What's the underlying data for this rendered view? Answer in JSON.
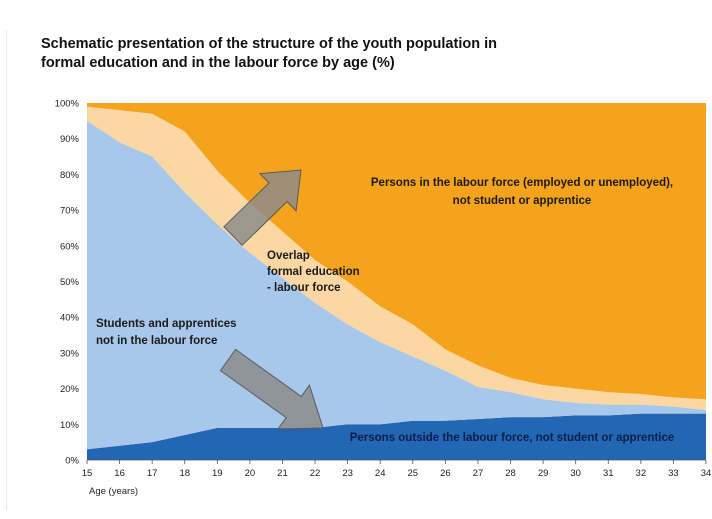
{
  "title_line1": "Schematic presentation of the structure of the youth population in",
  "title_line2": "formal education and in the labour force by age (%)",
  "chart_data": {
    "type": "area",
    "stacked": true,
    "title": "Schematic presentation of the structure of the youth population in formal education and in the labour force by age (%)",
    "xlabel": "Age (years)",
    "ylabel": "",
    "x": [
      15,
      16,
      17,
      18,
      19,
      20,
      21,
      22,
      23,
      24,
      25,
      26,
      27,
      28,
      29,
      30,
      31,
      32,
      33,
      34
    ],
    "xlim": [
      15,
      34
    ],
    "ylim": [
      0,
      100
    ],
    "y_ticks": [
      "0%",
      "10%",
      "20%",
      "30%",
      "40%",
      "50%",
      "60%",
      "70%",
      "80%",
      "90%",
      "100%"
    ],
    "x_ticks": [
      "15",
      "16",
      "17",
      "18",
      "19",
      "20",
      "21",
      "22",
      "23",
      "24",
      "25",
      "26",
      "27",
      "28",
      "29",
      "30",
      "31",
      "32",
      "33",
      "34"
    ],
    "series": [
      {
        "name": "Persons outside the labour force, not student or apprentice",
        "color": "#2367b4",
        "values": [
          3,
          4,
          5,
          7,
          9,
          9,
          9,
          9,
          10,
          10,
          11,
          11,
          11.5,
          12,
          12,
          12.5,
          12.5,
          13,
          13,
          13
        ]
      },
      {
        "name": "Students and apprentices not in the labour force",
        "color": "#a7c8ea",
        "values": [
          92,
          85,
          80,
          68,
          57,
          49,
          42,
          35,
          28,
          23,
          18,
          14,
          9,
          7,
          5,
          3.5,
          3,
          2.5,
          2,
          1
        ]
      },
      {
        "name": "Overlap formal education - labour force",
        "color": "#fbd7a3",
        "values": [
          4,
          9,
          12,
          17,
          15,
          14,
          13,
          12,
          12,
          10,
          9,
          6,
          6,
          4,
          4,
          4,
          3.5,
          3,
          2.5,
          3
        ]
      },
      {
        "name": "Persons in the labour force (employed or unemployed), not student or apprentice",
        "color": "#f5a31c",
        "values": [
          1,
          2,
          3,
          8,
          19,
          28,
          36,
          44,
          50,
          57,
          62,
          69,
          73.5,
          77,
          79,
          80,
          81,
          81.5,
          82.5,
          83
        ]
      }
    ],
    "annotations": [
      {
        "key": "labour",
        "lines": [
          "Persons in the labour force (employed or unemployed),",
          "not student or apprentice"
        ]
      },
      {
        "key": "overlap",
        "lines": [
          "Overlap",
          "formal education",
          "- labour force"
        ]
      },
      {
        "key": "students",
        "lines": [
          "Students and apprentices",
          "not in the labour force"
        ]
      },
      {
        "key": "outside",
        "lines": [
          "Persons outside the labour force, not student or apprentice"
        ]
      }
    ],
    "legend": "none",
    "grid": false
  }
}
